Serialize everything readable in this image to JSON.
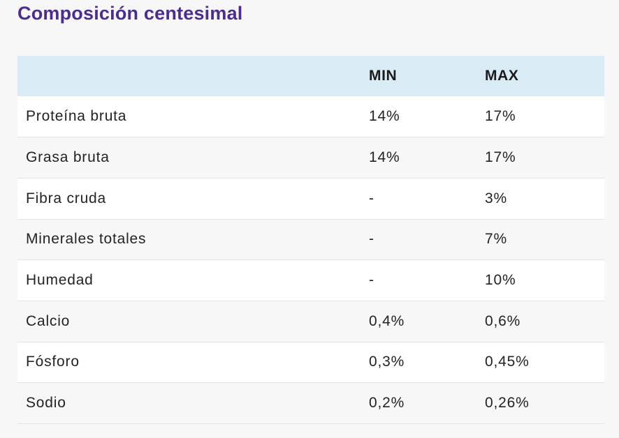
{
  "section": {
    "title": "Composición centesimal"
  },
  "table": {
    "headers": [
      "",
      "MIN",
      "MAX"
    ],
    "rows": [
      {
        "name": "Proteína bruta",
        "min": "14%",
        "max": "17%"
      },
      {
        "name": "Grasa bruta",
        "min": "14%",
        "max": "17%"
      },
      {
        "name": "Fibra cruda",
        "min": "-",
        "max": "3%"
      },
      {
        "name": "Minerales totales",
        "min": "-",
        "max": "7%"
      },
      {
        "name": "Humedad",
        "min": "-",
        "max": "10%"
      },
      {
        "name": "Calcio",
        "min": "0,4%",
        "max": "0,6%"
      },
      {
        "name": "Fósforo",
        "min": "0,3%",
        "max": "0,45%"
      },
      {
        "name": "Sodio",
        "min": "0,2%",
        "max": "0,26%"
      }
    ]
  },
  "colors": {
    "title": "#4b2d91",
    "header_background": "#d9ebf5",
    "page_background": "#f7f7f7"
  }
}
